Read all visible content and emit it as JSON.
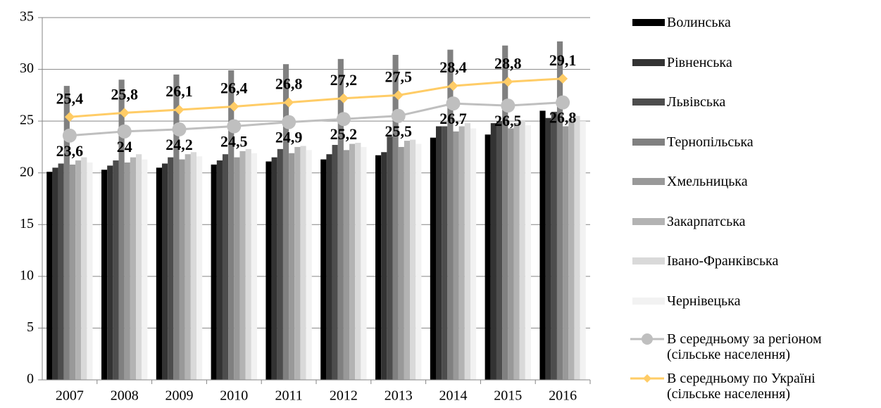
{
  "chart_data": {
    "type": "bar",
    "categories": [
      "2007",
      "2008",
      "2009",
      "2010",
      "2011",
      "2012",
      "2013",
      "2014",
      "2015",
      "2016"
    ],
    "ylim": [
      0,
      35
    ],
    "yticks": [
      0,
      5,
      10,
      15,
      20,
      25,
      30,
      35
    ],
    "grid": true,
    "legend": "right",
    "series": [
      {
        "name": "Волинська",
        "color": "#000000",
        "values": [
          20.1,
          20.3,
          20.5,
          20.8,
          21.1,
          21.3,
          21.7,
          23.4,
          23.7,
          26.0
        ]
      },
      {
        "name": "Рівненська",
        "color": "#333333",
        "values": [
          20.5,
          20.7,
          20.9,
          21.2,
          21.5,
          21.8,
          22.0,
          24.5,
          24.8,
          25.3
        ]
      },
      {
        "name": "Львівська",
        "color": "#4d4d4d",
        "values": [
          20.9,
          21.2,
          21.5,
          21.8,
          22.3,
          22.7,
          23.5,
          24.5,
          25.0,
          25.9
        ]
      },
      {
        "name": "Тернопільська",
        "color": "#808080",
        "values": [
          28.4,
          29.0,
          29.5,
          29.9,
          30.5,
          31.0,
          31.4,
          31.9,
          32.3,
          32.7
        ]
      },
      {
        "name": "Хмельницька",
        "color": "#999999",
        "values": [
          20.8,
          21.0,
          21.3,
          21.5,
          21.9,
          22.2,
          22.5,
          24.0,
          24.3,
          24.5
        ]
      },
      {
        "name": "Закарпатська",
        "color": "#b3b3b3",
        "values": [
          21.2,
          21.5,
          21.8,
          22.1,
          22.5,
          22.8,
          23.1,
          24.5,
          24.8,
          25.2
        ]
      },
      {
        "name": "Івано-Франківська",
        "color": "#d9d9d9",
        "values": [
          21.5,
          21.8,
          22.0,
          22.3,
          22.6,
          22.9,
          23.2,
          24.8,
          25.1,
          25.5
        ]
      },
      {
        "name": "Чернівецька",
        "color": "#f2f2f2",
        "values": [
          21.0,
          21.3,
          21.6,
          21.9,
          22.2,
          22.5,
          22.8,
          24.3,
          24.6,
          25.0
        ]
      },
      {
        "name": "В середньому за регіоном (сільське населення)",
        "type": "line",
        "marker": "circle",
        "label_position": "below",
        "color": "#bfbfbf",
        "values": [
          23.6,
          24,
          24.2,
          24.5,
          24.9,
          25.2,
          25.5,
          26.7,
          26.5,
          26.8
        ],
        "value_labels": [
          "23,6",
          "24",
          "24,2",
          "24,5",
          "24,9",
          "25,2",
          "25,5",
          "26,7",
          "26,5",
          "26,8"
        ]
      },
      {
        "name": "В середньому по Україні (сільське населення)",
        "type": "line",
        "marker": "diamond",
        "label_position": "above",
        "color": "#ffcc66",
        "values": [
          25.4,
          25.8,
          26.1,
          26.4,
          26.8,
          27.2,
          27.5,
          28.4,
          28.8,
          29.1
        ],
        "value_labels": [
          "25,4",
          "25,8",
          "26,1",
          "26,4",
          "26,8",
          "27,2",
          "27,5",
          "28,4",
          "28,8",
          "29,1"
        ]
      }
    ]
  }
}
